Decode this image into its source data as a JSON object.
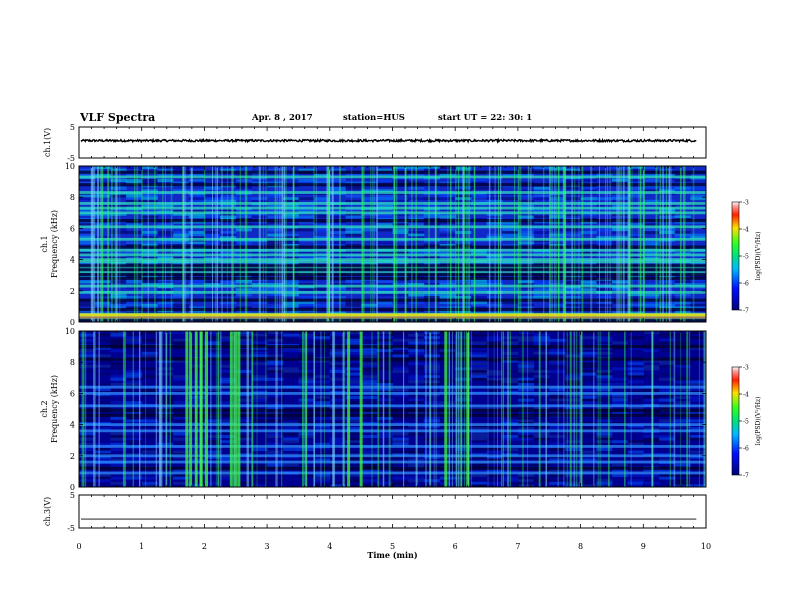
{
  "header": {
    "title": "VLF Spectra",
    "date": "Apr. 8 , 2017",
    "station": "station=HUS",
    "start": "start UT =  22: 30: 1"
  },
  "chart_data": [
    {
      "type": "line",
      "panel": "ch1-waveform",
      "ylabel": "ch.1(V)",
      "ylim": [
        -5,
        5
      ],
      "yticks": [
        5,
        -5
      ],
      "xlim": [
        0,
        10
      ],
      "x_end": 9.85,
      "level": 0.6,
      "noise_amplitude": 0.35
    },
    {
      "type": "heatmap",
      "panel": "ch1-spectrogram",
      "ylabel": "ch.1 Frequency (kHz)",
      "ylim": [
        0,
        10
      ],
      "yticks": [
        0,
        2,
        4,
        6,
        8,
        10
      ],
      "xlim": [
        0,
        10
      ],
      "colorbar": {
        "label": "log(PSD)(V²/Hz)",
        "range": [
          -7,
          -3
        ],
        "ticks": [
          -3,
          -4,
          -5,
          -6,
          -7
        ]
      },
      "bright_bands_khz": [
        0.2,
        0.35,
        0.5,
        1.9,
        2.3,
        3.2,
        3.5,
        3.85,
        4.0,
        4.3,
        4.6,
        5.3,
        6.1,
        7.0,
        7.3,
        7.6,
        8.3,
        9.3
      ],
      "dark_bands_khz": [
        0.1,
        0.8,
        1.4,
        2.8,
        3.05,
        3.35,
        3.6,
        4.8,
        6.5,
        8.8,
        9.6
      ]
    },
    {
      "type": "heatmap",
      "panel": "ch2-spectrogram",
      "ylabel": "ch.2 Frequency (kHz)",
      "ylim": [
        0,
        10
      ],
      "yticks": [
        0,
        2,
        4,
        6,
        8,
        10
      ],
      "xlim": [
        0,
        10
      ],
      "colorbar": {
        "label": "log(PSD)(V²/Hz)",
        "range": [
          -7,
          -3
        ],
        "ticks": [
          -3,
          -4,
          -5,
          -6,
          -7
        ]
      },
      "strong_bursts_min": [
        1.72,
        1.78,
        1.87,
        1.95,
        2.03,
        2.43,
        2.5,
        2.55,
        4.3,
        4.5,
        5.85,
        6.2
      ],
      "bright_bands_khz": [
        0.9,
        1.6,
        2.0,
        2.6,
        3.6,
        4.0,
        5.2,
        6.0,
        6.4
      ],
      "dark_bands_khz": [
        4.6,
        4.9,
        1.2,
        8.2,
        9.0
      ]
    },
    {
      "type": "line",
      "panel": "ch3-waveform",
      "ylabel": "ch.3(V)",
      "ylim": [
        -5,
        5
      ],
      "yticks": [
        5,
        -5
      ],
      "xlim": [
        0,
        10
      ],
      "x_end": 9.85,
      "level": -2.3,
      "xlabel": "Time (min)",
      "xticks": [
        0,
        1,
        2,
        3,
        4,
        5,
        6,
        7,
        8,
        9,
        10
      ]
    }
  ]
}
